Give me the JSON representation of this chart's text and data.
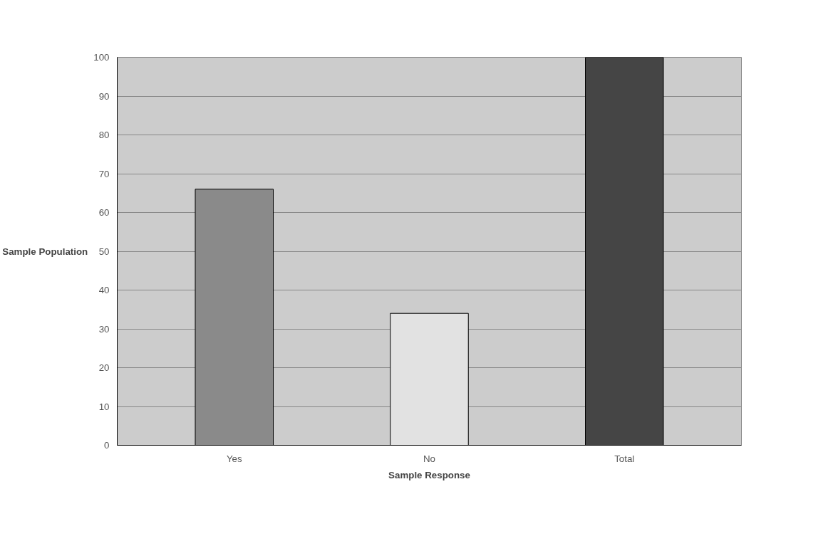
{
  "chart_data": {
    "type": "bar",
    "xlabel": "Sample Response",
    "ylabel": "Sample Population",
    "categories": [
      "Yes",
      "No",
      "Total"
    ],
    "values": [
      66,
      34,
      100
    ],
    "colors": [
      "#8a8a8a",
      "#e2e2e2",
      "#454545"
    ],
    "ylim": [
      0,
      100
    ],
    "yticks": [
      0,
      10,
      20,
      30,
      40,
      50,
      60,
      70,
      80,
      90,
      100
    ],
    "grid": "y"
  }
}
